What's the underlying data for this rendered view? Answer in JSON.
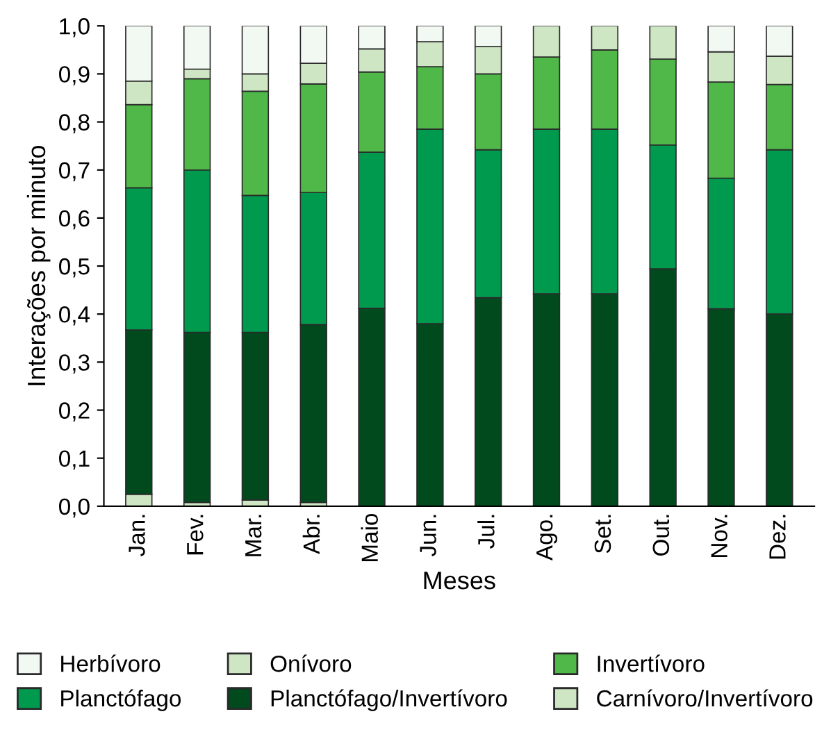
{
  "chart_data": {
    "type": "bar",
    "stacked": true,
    "xlabel": "Meses",
    "ylabel": "Interações por minuto",
    "categories": [
      "Jan.",
      "Fev.",
      "Mar.",
      "Abr.",
      "Maio",
      "Jun.",
      "Jul.",
      "Ago.",
      "Set.",
      "Out.",
      "Nov.",
      "Dez."
    ],
    "series": [
      {
        "name": "Carnívoro/Invertívoro",
        "color": "#cfe6c5",
        "values": [
          0.025,
          0.008,
          0.013,
          0.008,
          null,
          null,
          null,
          null,
          null,
          null,
          null,
          null
        ]
      },
      {
        "name": "Planctófago/Invertívoro",
        "color": "#004a1e",
        "values": [
          0.342,
          0.354,
          0.349,
          0.37,
          0.412,
          0.38,
          0.434,
          0.442,
          0.442,
          0.494,
          0.411,
          0.4
        ]
      },
      {
        "name": "Planctófago",
        "color": "#009a4e",
        "values": [
          0.296,
          0.338,
          0.285,
          0.275,
          0.325,
          0.405,
          0.308,
          0.343,
          0.343,
          0.258,
          0.272,
          0.342
        ]
      },
      {
        "name": "Invertívoro",
        "color": "#4fb848",
        "values": [
          0.173,
          0.19,
          0.217,
          0.226,
          0.167,
          0.13,
          0.158,
          0.15,
          0.165,
          0.179,
          0.2,
          0.136
        ]
      },
      {
        "name": "Onívoro",
        "color": "#cfe6c5",
        "values": [
          0.049,
          0.02,
          0.036,
          0.043,
          0.048,
          0.052,
          0.057,
          0.065,
          0.05,
          0.069,
          0.063,
          0.059
        ]
      },
      {
        "name": "Herbívoro",
        "color": "#f2f8f2",
        "values": [
          0.115,
          0.09,
          0.1,
          0.078,
          0.048,
          0.033,
          0.043,
          null,
          null,
          null,
          0.054,
          0.063
        ]
      }
    ],
    "ylim": [
      0,
      1.0
    ],
    "yticks": [
      {
        "value": 0,
        "label": "0,0"
      },
      {
        "value": 0.1,
        "label": "0,1"
      },
      {
        "value": 0.2,
        "label": "0,2"
      },
      {
        "value": 0.3,
        "label": "0,3"
      },
      {
        "value": 0.4,
        "label": "0,4"
      },
      {
        "value": 0.5,
        "label": "0,5"
      },
      {
        "value": 0.6,
        "label": "0,6"
      },
      {
        "value": 0.7,
        "label": "0,7"
      },
      {
        "value": 0.8,
        "label": "0,8"
      },
      {
        "value": 0.9,
        "label": "0,9"
      },
      {
        "value": 1.0,
        "label": "1,0"
      }
    ],
    "grid": false,
    "legend": "bottom"
  }
}
